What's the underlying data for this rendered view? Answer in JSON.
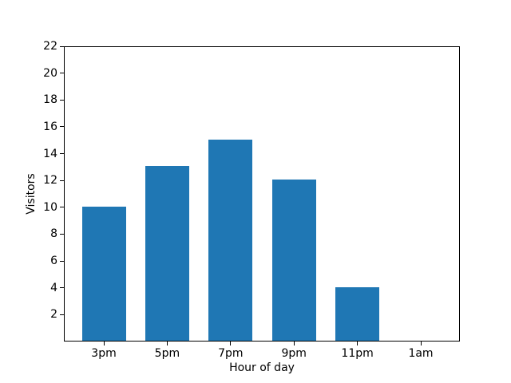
{
  "chart_data": {
    "type": "bar",
    "title": "",
    "xlabel": "Hour of day",
    "ylabel": "Visitors",
    "categories": [
      "3pm",
      "5pm",
      "7pm",
      "9pm",
      "11pm",
      "1am"
    ],
    "values": [
      10,
      13,
      15,
      12,
      4,
      0
    ],
    "ylim": [
      0,
      22
    ],
    "yticks": [
      2,
      4,
      6,
      8,
      10,
      12,
      14,
      16,
      18,
      20,
      22
    ],
    "bar_color": "#1f77b4",
    "axis_color": "#000000",
    "text_color": "#000000",
    "background_color": "#ffffff",
    "grid": false,
    "legend": null
  }
}
